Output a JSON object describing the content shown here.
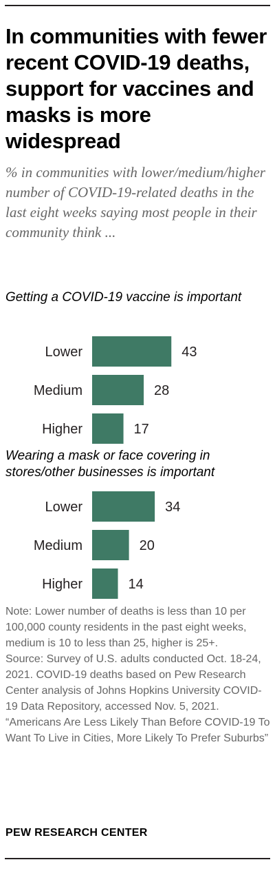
{
  "chart_data": {
    "type": "bar",
    "title": "In communities with fewer recent COVID-19 deaths, support for vaccines and masks is more widespread",
    "subtitle": "% in communities with lower/medium/higher number of COVID-19-related deaths in the last eight weeks saying most people in their community think ...",
    "panels": [
      {
        "title": "Getting a COVID-19 vaccine is important",
        "categories": [
          "Lower",
          "Medium",
          "Higher"
        ],
        "values": [
          43,
          28,
          17
        ]
      },
      {
        "title": "Wearing a mask or face covering in stores/other businesses is important",
        "categories": [
          "Lower",
          "Medium",
          "Higher"
        ],
        "values": [
          34,
          20,
          14
        ]
      }
    ],
    "bar_color": "#3f7a65"
  },
  "note": "Note: Lower number of deaths is less than 10 per 100,000 county residents in the past eight weeks, medium is 10 to less than 25, higher is 25+.",
  "source": "Source: Survey of U.S. adults conducted Oct. 18-24, 2021. COVID-19 deaths based on Pew Research Center analysis of Johns Hopkins University COVID-19 Data Repository, accessed Nov. 5, 2021.",
  "report": "“Americans Are Less Likely Than Before COVID-19 To Want To Live in Cities, More Likely To Prefer Suburbs”",
  "organization": "PEW RESEARCH CENTER"
}
